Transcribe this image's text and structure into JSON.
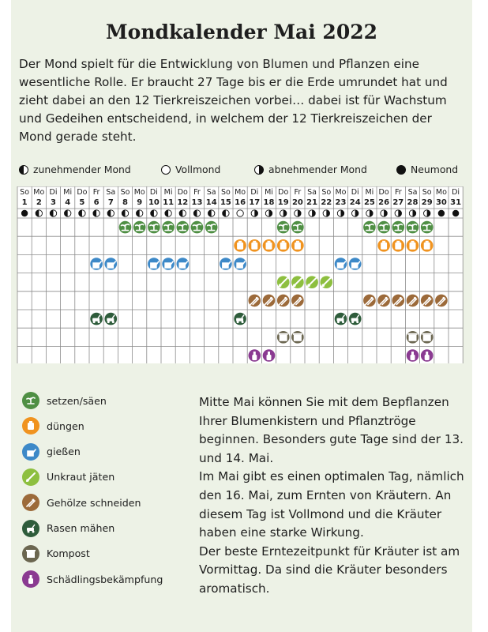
{
  "title": "Mondkalender Mai 2022",
  "intro": "Der Mond spielt für die Entwicklung von Blumen und Pflanzen eine wesentliche Rolle. Er braucht 27 Tage bis er die Erde umrundet hat und zieht dabei an den 12 Tierkreiszeichen vorbei… dabei ist für Wachstum und Gedeihen entscheidend, in welchem der 12 Tierkreiszeichen der Mond gerade steht.",
  "phase_legend": [
    {
      "icon": "waxing-moon-icon",
      "label": "zunehmender Mond"
    },
    {
      "icon": "full-moon-icon",
      "label": "Vollmond"
    },
    {
      "icon": "waning-moon-icon",
      "label": "abnehmender Mond"
    },
    {
      "icon": "new-moon-icon",
      "label": "Neumond"
    }
  ],
  "calendar": {
    "weekdays": [
      "So",
      "Mo",
      "Di",
      "Mi",
      "Do",
      "Fr",
      "Sa",
      "So",
      "Mo",
      "Di",
      "Mi",
      "Do",
      "Fr",
      "Sa",
      "So",
      "Mo",
      "Di",
      "Mi",
      "Do",
      "Fr",
      "Sa",
      "So",
      "Mo",
      "Di",
      "Mi",
      "Do",
      "Fr",
      "Sa",
      "So",
      "Mo",
      "Di"
    ],
    "days": [
      "1",
      "2",
      "3",
      "4",
      "5",
      "6",
      "7",
      "8",
      "9",
      "10",
      "11",
      "12",
      "13",
      "14",
      "15",
      "16",
      "17",
      "18",
      "19",
      "20",
      "21",
      "22",
      "23",
      "24",
      "25",
      "26",
      "27",
      "28",
      "29",
      "30",
      "31"
    ],
    "moon_phases": [
      "new",
      "wax",
      "wax",
      "wax",
      "wax",
      "wax",
      "wax",
      "wax",
      "wax",
      "wax",
      "wax",
      "wax",
      "wax",
      "wax",
      "wax",
      "full",
      "wane",
      "wane",
      "wane",
      "wane",
      "wane",
      "wane",
      "wane",
      "wane",
      "wane",
      "wane",
      "wane",
      "wane",
      "wane",
      "new",
      "new"
    ],
    "activity_rows": [
      {
        "activity": "setzen",
        "days": [
          8,
          9,
          10,
          11,
          12,
          13,
          14,
          19,
          20,
          25,
          26,
          27,
          28,
          29
        ]
      },
      {
        "activity": "duengen",
        "days": [
          16,
          17,
          18,
          19,
          20,
          26,
          27,
          28,
          29
        ]
      },
      {
        "activity": "giessen",
        "days": [
          6,
          7,
          10,
          11,
          12,
          15,
          16,
          23,
          24
        ]
      },
      {
        "activity": "unkraut",
        "days": [
          19,
          20,
          21,
          22
        ]
      },
      {
        "activity": "schneiden",
        "days": [
          17,
          18,
          19,
          20,
          25,
          26,
          27,
          28,
          29,
          30
        ]
      },
      {
        "activity": "rasen",
        "days": [
          6,
          7,
          16,
          23,
          24
        ]
      },
      {
        "activity": "kompost",
        "days": [
          19,
          20,
          28,
          29
        ]
      },
      {
        "activity": "schaedlinge",
        "days": [
          17,
          18,
          28,
          29
        ]
      }
    ]
  },
  "activities": [
    {
      "key": "setzen",
      "label": "setzen/säen",
      "color": "#4f8f44",
      "icon": "seedling-icon"
    },
    {
      "key": "duengen",
      "label": "düngen",
      "color": "#f0931f",
      "icon": "fertilizer-icon"
    },
    {
      "key": "giessen",
      "label": "gießen",
      "color": "#3d89c8",
      "icon": "watering-can-icon"
    },
    {
      "key": "unkraut",
      "label": "Unkraut jäten",
      "color": "#8dbf3f",
      "icon": "weeding-icon"
    },
    {
      "key": "schneiden",
      "label": "Gehölze schneiden",
      "color": "#9c6a3a",
      "icon": "pruning-shears-icon"
    },
    {
      "key": "rasen",
      "label": "Rasen mähen",
      "color": "#2e5c3b",
      "icon": "lawn-mower-icon"
    },
    {
      "key": "kompost",
      "label": "Kompost",
      "color": "#6b6650",
      "icon": "compost-bin-icon"
    },
    {
      "key": "schaedlinge",
      "label": "Schädlingsbekämpfung",
      "color": "#8a3a91",
      "icon": "spray-bottle-icon"
    }
  ],
  "side_text": [
    "Mitte Mai können Sie mit dem Bepflanzen Ihrer Blumenkistern und Pflanztröge beginnen. Besonders gute Tage sind der 13. und 14. Mai.",
    "Im Mai gibt es einen optimalen Tag, nämlich den 16. Mai, zum Ernten von Kräutern. An diesem Tag ist Vollmond und die Kräuter haben eine starke Wirkung.",
    "Der beste Erntezeitpunkt für Kräuter ist am Vormittag. Da sind die Kräuter besonders aromatisch."
  ]
}
